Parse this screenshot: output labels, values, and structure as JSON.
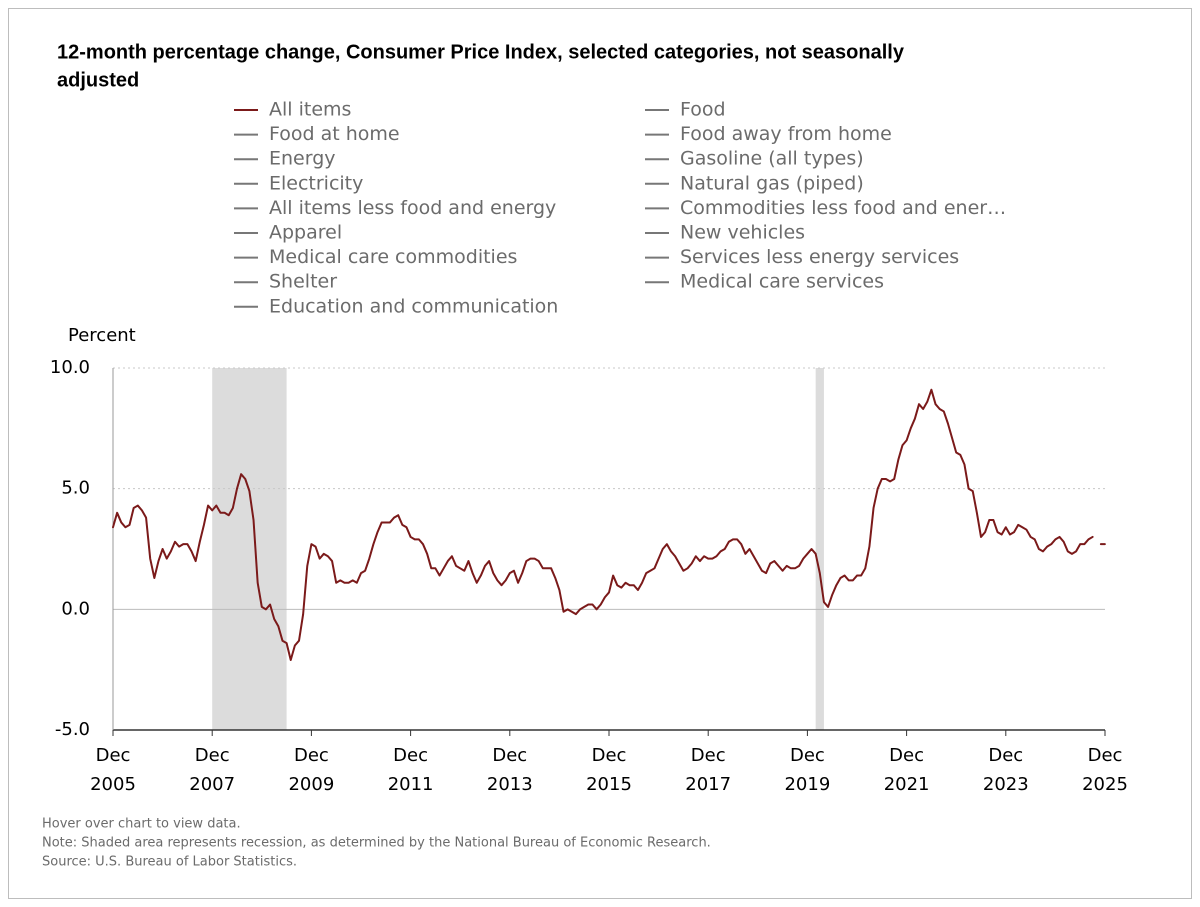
{
  "chart_data": {
    "type": "line",
    "title": [
      "12-month percentage change, Consumer Price Index, selected categories, not seasonally",
      "adjusted"
    ],
    "ylabel": "Percent",
    "legend": [
      {
        "name": "All items",
        "color": "#7b1a1a"
      },
      {
        "name": "Food at home",
        "color": "#777777"
      },
      {
        "name": "Energy",
        "color": "#777777"
      },
      {
        "name": "Electricity",
        "color": "#777777"
      },
      {
        "name": "All items less food and energy",
        "color": "#777777"
      },
      {
        "name": "Apparel",
        "color": "#777777"
      },
      {
        "name": "Medical care commodities",
        "color": "#777777"
      },
      {
        "name": "Shelter",
        "color": "#777777"
      },
      {
        "name": "Education and communication",
        "color": "#777777"
      },
      {
        "name": "Food",
        "color": "#777777"
      },
      {
        "name": "Food away from home",
        "color": "#777777"
      },
      {
        "name": "Gasoline (all types)",
        "color": "#777777"
      },
      {
        "name": "Natural gas (piped)",
        "color": "#777777"
      },
      {
        "name": "Commodities less food and ener…",
        "color": "#777777"
      },
      {
        "name": "New vehicles",
        "color": "#777777"
      },
      {
        "name": "Services less energy services",
        "color": "#777777"
      },
      {
        "name": "Medical care services",
        "color": "#777777"
      }
    ],
    "x": [
      "2005-12",
      "2006-01",
      "2006-02",
      "2006-03",
      "2006-04",
      "2006-05",
      "2006-06",
      "2006-07",
      "2006-08",
      "2006-09",
      "2006-10",
      "2006-11",
      "2006-12",
      "2007-01",
      "2007-02",
      "2007-03",
      "2007-04",
      "2007-05",
      "2007-06",
      "2007-07",
      "2007-08",
      "2007-09",
      "2007-10",
      "2007-11",
      "2007-12",
      "2008-01",
      "2008-02",
      "2008-03",
      "2008-04",
      "2008-05",
      "2008-06",
      "2008-07",
      "2008-08",
      "2008-09",
      "2008-10",
      "2008-11",
      "2008-12",
      "2009-01",
      "2009-02",
      "2009-03",
      "2009-04",
      "2009-05",
      "2009-06",
      "2009-07",
      "2009-08",
      "2009-09",
      "2009-10",
      "2009-11",
      "2009-12",
      "2010-01",
      "2010-02",
      "2010-03",
      "2010-04",
      "2010-05",
      "2010-06",
      "2010-07",
      "2010-08",
      "2010-09",
      "2010-10",
      "2010-11",
      "2010-12",
      "2011-01",
      "2011-02",
      "2011-03",
      "2011-04",
      "2011-05",
      "2011-06",
      "2011-07",
      "2011-08",
      "2011-09",
      "2011-10",
      "2011-11",
      "2011-12",
      "2012-01",
      "2012-02",
      "2012-03",
      "2012-04",
      "2012-05",
      "2012-06",
      "2012-07",
      "2012-08",
      "2012-09",
      "2012-10",
      "2012-11",
      "2012-12",
      "2013-01",
      "2013-02",
      "2013-03",
      "2013-04",
      "2013-05",
      "2013-06",
      "2013-07",
      "2013-08",
      "2013-09",
      "2013-10",
      "2013-11",
      "2013-12",
      "2014-01",
      "2014-02",
      "2014-03",
      "2014-04",
      "2014-05",
      "2014-06",
      "2014-07",
      "2014-08",
      "2014-09",
      "2014-10",
      "2014-11",
      "2014-12",
      "2015-01",
      "2015-02",
      "2015-03",
      "2015-04",
      "2015-05",
      "2015-06",
      "2015-07",
      "2015-08",
      "2015-09",
      "2015-10",
      "2015-11",
      "2015-12",
      "2016-01",
      "2016-02",
      "2016-03",
      "2016-04",
      "2016-05",
      "2016-06",
      "2016-07",
      "2016-08",
      "2016-09",
      "2016-10",
      "2016-11",
      "2016-12",
      "2017-01",
      "2017-02",
      "2017-03",
      "2017-04",
      "2017-05",
      "2017-06",
      "2017-07",
      "2017-08",
      "2017-09",
      "2017-10",
      "2017-11",
      "2017-12",
      "2018-01",
      "2018-02",
      "2018-03",
      "2018-04",
      "2018-05",
      "2018-06",
      "2018-07",
      "2018-08",
      "2018-09",
      "2018-10",
      "2018-11",
      "2018-12",
      "2019-01",
      "2019-02",
      "2019-03",
      "2019-04",
      "2019-05",
      "2019-06",
      "2019-07",
      "2019-08",
      "2019-09",
      "2019-10",
      "2019-11",
      "2019-12",
      "2020-01",
      "2020-02",
      "2020-03",
      "2020-04",
      "2020-05",
      "2020-06",
      "2020-07",
      "2020-08",
      "2020-09",
      "2020-10",
      "2020-11",
      "2020-12",
      "2021-01",
      "2021-02",
      "2021-03",
      "2021-04",
      "2021-05",
      "2021-06",
      "2021-07",
      "2021-08",
      "2021-09",
      "2021-10",
      "2021-11",
      "2021-12",
      "2022-01",
      "2022-02",
      "2022-03",
      "2022-04",
      "2022-05",
      "2022-06",
      "2022-07",
      "2022-08",
      "2022-09",
      "2022-10",
      "2022-11",
      "2022-12",
      "2023-01",
      "2023-02",
      "2023-03",
      "2023-04",
      "2023-05",
      "2023-06",
      "2023-07",
      "2023-08",
      "2023-09",
      "2023-10",
      "2023-11",
      "2023-12",
      "2024-01",
      "2024-02",
      "2024-03",
      "2024-04",
      "2024-05",
      "2024-06",
      "2024-07",
      "2024-08",
      "2024-09",
      "2024-10",
      "2024-11",
      "2024-12",
      "2025-01",
      "2025-02",
      "2025-03",
      "2025-04",
      "2025-05",
      "2025-06",
      "2025-07",
      "2025-08",
      "2025-09",
      "2025-10",
      "2025-11"
    ],
    "series": [
      {
        "name": "All items",
        "color": "#7b1a1a",
        "values": [
          3.4,
          4.0,
          3.6,
          3.4,
          3.5,
          4.2,
          4.3,
          4.1,
          3.8,
          2.1,
          1.3,
          2.0,
          2.5,
          2.1,
          2.4,
          2.8,
          2.6,
          2.7,
          2.7,
          2.4,
          2.0,
          2.8,
          3.5,
          4.3,
          4.1,
          4.3,
          4.0,
          4.0,
          3.9,
          4.2,
          5.0,
          5.6,
          5.4,
          4.9,
          3.7,
          1.1,
          0.1,
          0.0,
          0.2,
          -0.4,
          -0.7,
          -1.3,
          -1.4,
          -2.1,
          -1.5,
          -1.3,
          -0.2,
          1.8,
          2.7,
          2.6,
          2.1,
          2.3,
          2.2,
          2.0,
          1.1,
          1.2,
          1.1,
          1.1,
          1.2,
          1.1,
          1.5,
          1.6,
          2.1,
          2.7,
          3.2,
          3.6,
          3.6,
          3.6,
          3.8,
          3.9,
          3.5,
          3.4,
          3.0,
          2.9,
          2.9,
          2.7,
          2.3,
          1.7,
          1.7,
          1.4,
          1.7,
          2.0,
          2.2,
          1.8,
          1.7,
          1.6,
          2.0,
          1.5,
          1.1,
          1.4,
          1.8,
          2.0,
          1.5,
          1.2,
          1.0,
          1.2,
          1.5,
          1.6,
          1.1,
          1.5,
          2.0,
          2.1,
          2.1,
          2.0,
          1.7,
          1.7,
          1.7,
          1.3,
          0.8,
          -0.1,
          0.0,
          -0.1,
          -0.2,
          0.0,
          0.1,
          0.2,
          0.2,
          0.0,
          0.2,
          0.5,
          0.7,
          1.4,
          1.0,
          0.9,
          1.1,
          1.0,
          1.0,
          0.8,
          1.1,
          1.5,
          1.6,
          1.7,
          2.1,
          2.5,
          2.7,
          2.4,
          2.2,
          1.9,
          1.6,
          1.7,
          1.9,
          2.2,
          2.0,
          2.2,
          2.1,
          2.1,
          2.2,
          2.4,
          2.5,
          2.8,
          2.9,
          2.9,
          2.7,
          2.3,
          2.5,
          2.2,
          1.9,
          1.6,
          1.5,
          1.9,
          2.0,
          1.8,
          1.6,
          1.8,
          1.7,
          1.7,
          1.8,
          2.1,
          2.3,
          2.5,
          2.3,
          1.5,
          0.3,
          0.1,
          0.6,
          1.0,
          1.3,
          1.4,
          1.2,
          1.2,
          1.4,
          1.4,
          1.7,
          2.6,
          4.2,
          5.0,
          5.4,
          5.4,
          5.3,
          5.4,
          6.2,
          6.8,
          7.0,
          7.5,
          7.9,
          8.5,
          8.3,
          8.6,
          9.1,
          8.5,
          8.3,
          8.2,
          7.7,
          7.1,
          6.5,
          6.4,
          6.0,
          5.0,
          4.9,
          4.0,
          3.0,
          3.2,
          3.7,
          3.7,
          3.2,
          3.1,
          3.4,
          3.1,
          3.2,
          3.5,
          3.4,
          3.3,
          3.0,
          2.9,
          2.5,
          2.4,
          2.6,
          2.7,
          2.9,
          3.0,
          2.8,
          2.4,
          2.3,
          2.4,
          2.7,
          2.7,
          2.9,
          3.0,
          null,
          2.7
        ]
      }
    ],
    "recessions": [
      {
        "start": "2007-12",
        "end": "2009-06"
      },
      {
        "start": "2020-02",
        "end": "2020-04"
      }
    ],
    "xlim": [
      "2005-12",
      "2025-12"
    ],
    "xticks": [
      {
        "value": "2005-12",
        "label": [
          "Dec",
          "2005"
        ]
      },
      {
        "value": "2007-12",
        "label": [
          "Dec",
          "2007"
        ]
      },
      {
        "value": "2009-12",
        "label": [
          "Dec",
          "2009"
        ]
      },
      {
        "value": "2011-12",
        "label": [
          "Dec",
          "2011"
        ]
      },
      {
        "value": "2013-12",
        "label": [
          "Dec",
          "2013"
        ]
      },
      {
        "value": "2015-12",
        "label": [
          "Dec",
          "2015"
        ]
      },
      {
        "value": "2017-12",
        "label": [
          "Dec",
          "2017"
        ]
      },
      {
        "value": "2019-12",
        "label": [
          "Dec",
          "2019"
        ]
      },
      {
        "value": "2021-12",
        "label": [
          "Dec",
          "2021"
        ]
      },
      {
        "value": "2023-12",
        "label": [
          "Dec",
          "2023"
        ]
      },
      {
        "value": "2025-12",
        "label": [
          "Dec",
          "2025"
        ]
      }
    ],
    "ylim": [
      -5,
      10
    ],
    "yticks": [
      {
        "value": -5,
        "label": "-5.0"
      },
      {
        "value": 0,
        "label": "0.0"
      },
      {
        "value": 5,
        "label": "5.0"
      },
      {
        "value": 10,
        "label": "10.0"
      }
    ],
    "grid": true,
    "notes": [
      "Hover over chart to view data.",
      "Note: Shaded area represents recession, as determined by the National Bureau of Economic Research.",
      "Source: U.S. Bureau of Labor Statistics."
    ]
  }
}
